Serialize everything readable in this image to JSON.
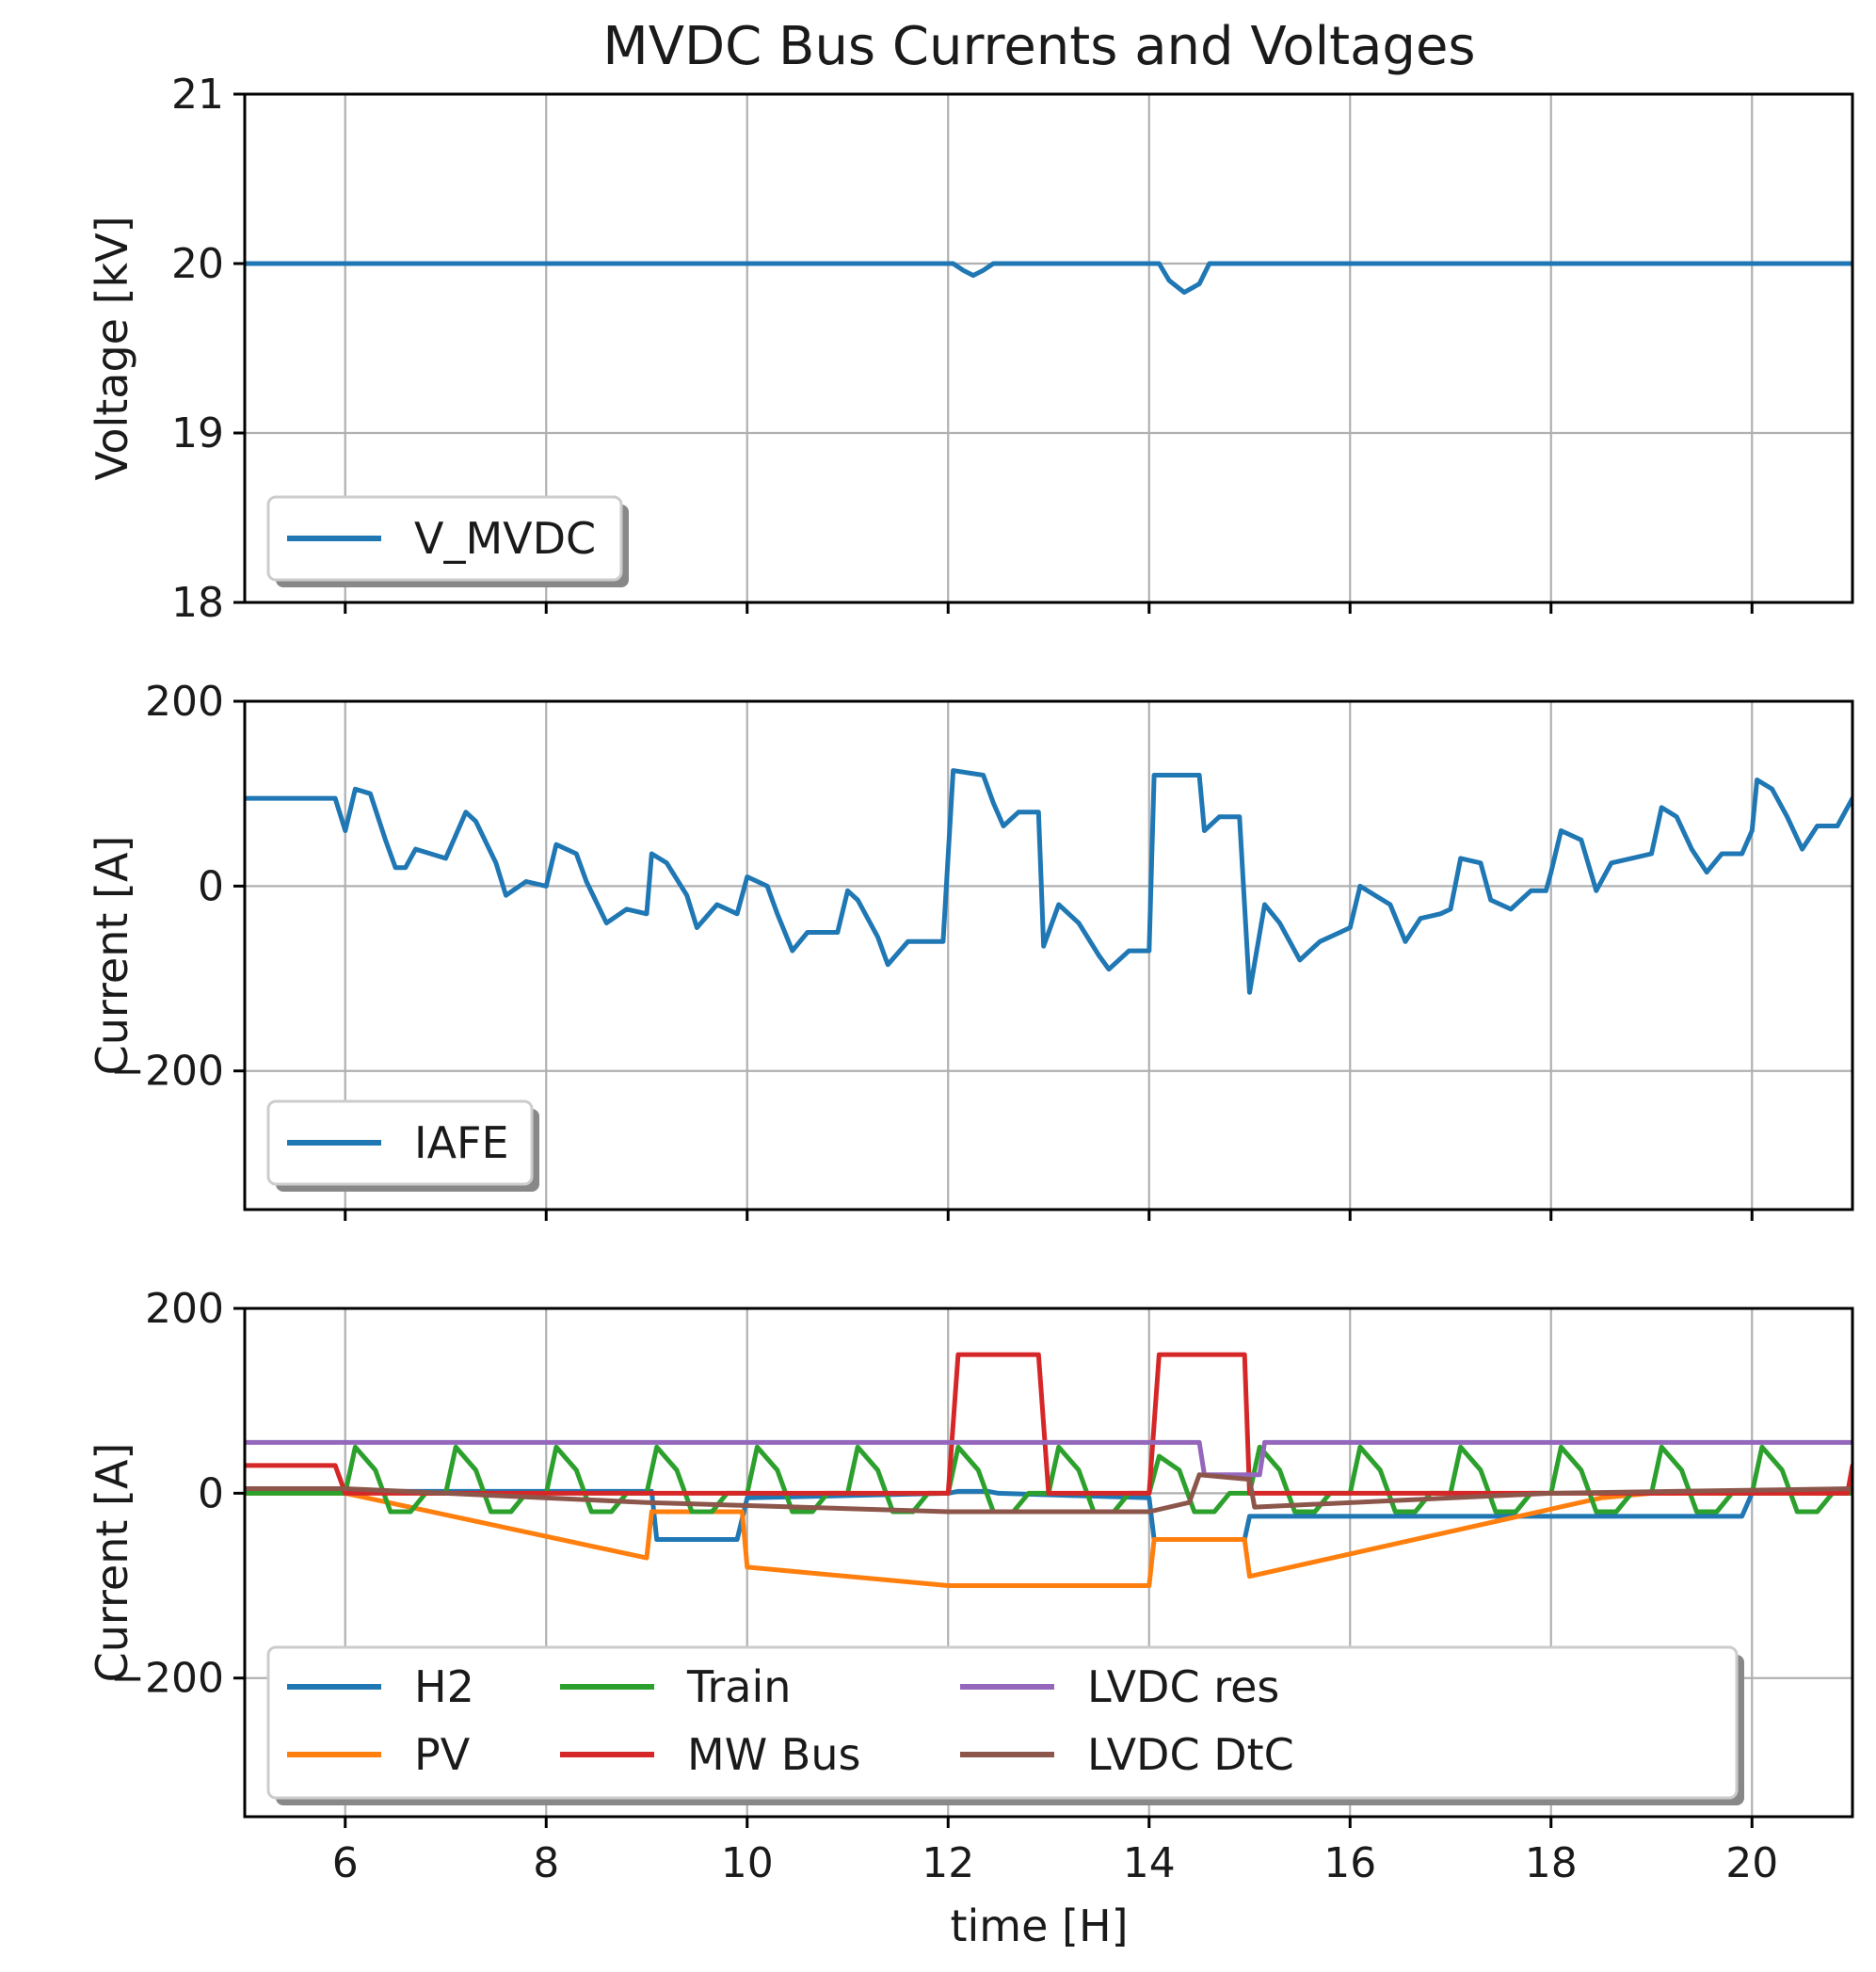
{
  "figure": {
    "title": "MVDC Bus Currents and Voltages",
    "xlabel": "time [H]"
  },
  "chart_data": [
    {
      "type": "line",
      "ylabel": "Voltage [kV]",
      "xlim": [
        5,
        21
      ],
      "ylim": [
        18,
        21
      ],
      "xticks": [
        6,
        8,
        10,
        12,
        14,
        16,
        18,
        20
      ],
      "yticks": [
        18,
        19,
        20,
        21
      ],
      "ytick_labels": [
        "18",
        "19",
        "20",
        "21"
      ],
      "legend_position": "lower-left",
      "legend_columns": 1,
      "series": [
        {
          "name": "V_MVDC",
          "color": "#1f77b4",
          "points": [
            [
              5,
              20
            ],
            [
              12.05,
              20
            ],
            [
              12.15,
              19.96
            ],
            [
              12.25,
              19.93
            ],
            [
              12.35,
              19.96
            ],
            [
              12.45,
              20
            ],
            [
              14.1,
              20
            ],
            [
              14.2,
              19.9
            ],
            [
              14.35,
              19.83
            ],
            [
              14.5,
              19.88
            ],
            [
              14.6,
              20
            ],
            [
              21,
              20
            ]
          ]
        }
      ]
    },
    {
      "type": "line",
      "ylabel": "Current [A]",
      "xlim": [
        5,
        21
      ],
      "ylim": [
        -350,
        200
      ],
      "xticks": [
        6,
        8,
        10,
        12,
        14,
        16,
        18,
        20
      ],
      "yticks": [
        -200,
        0,
        200
      ],
      "ytick_labels": [
        "−200",
        "0",
        "200"
      ],
      "legend_position": "lower-left",
      "legend_columns": 1,
      "series": [
        {
          "name": "IAFE",
          "color": "#1f77b4",
          "points": [
            [
              5,
              95
            ],
            [
              5.9,
              95
            ],
            [
              6,
              60
            ],
            [
              6.1,
              105
            ],
            [
              6.25,
              100
            ],
            [
              6.4,
              50
            ],
            [
              6.5,
              20
            ],
            [
              6.6,
              20
            ],
            [
              6.7,
              40
            ],
            [
              7,
              30
            ],
            [
              7.2,
              80
            ],
            [
              7.3,
              70
            ],
            [
              7.5,
              25
            ],
            [
              7.6,
              -10
            ],
            [
              7.8,
              5
            ],
            [
              8,
              0
            ],
            [
              8.1,
              45
            ],
            [
              8.3,
              35
            ],
            [
              8.4,
              5
            ],
            [
              8.6,
              -40
            ],
            [
              8.8,
              -25
            ],
            [
              9,
              -30
            ],
            [
              9.05,
              35
            ],
            [
              9.2,
              25
            ],
            [
              9.4,
              -10
            ],
            [
              9.5,
              -45
            ],
            [
              9.7,
              -20
            ],
            [
              9.9,
              -30
            ],
            [
              10,
              10
            ],
            [
              10.2,
              0
            ],
            [
              10.3,
              -30
            ],
            [
              10.45,
              -70
            ],
            [
              10.6,
              -50
            ],
            [
              10.9,
              -50
            ],
            [
              11,
              -5
            ],
            [
              11.1,
              -15
            ],
            [
              11.3,
              -55
            ],
            [
              11.4,
              -85
            ],
            [
              11.6,
              -60
            ],
            [
              11.95,
              -60
            ],
            [
              12.05,
              125
            ],
            [
              12.35,
              120
            ],
            [
              12.45,
              90
            ],
            [
              12.55,
              65
            ],
            [
              12.7,
              80
            ],
            [
              12.9,
              80
            ],
            [
              12.95,
              -65
            ],
            [
              13.1,
              -20
            ],
            [
              13.3,
              -40
            ],
            [
              13.5,
              -75
            ],
            [
              13.6,
              -90
            ],
            [
              13.8,
              -70
            ],
            [
              14,
              -70
            ],
            [
              14.05,
              120
            ],
            [
              14.5,
              120
            ],
            [
              14.55,
              60
            ],
            [
              14.7,
              75
            ],
            [
              14.9,
              75
            ],
            [
              15,
              -115
            ],
            [
              15.15,
              -20
            ],
            [
              15.3,
              -40
            ],
            [
              15.5,
              -80
            ],
            [
              15.7,
              -60
            ],
            [
              15.9,
              -50
            ],
            [
              16,
              -45
            ],
            [
              16.1,
              0
            ],
            [
              16.25,
              -10
            ],
            [
              16.4,
              -20
            ],
            [
              16.55,
              -60
            ],
            [
              16.7,
              -35
            ],
            [
              16.9,
              -30
            ],
            [
              17,
              -25
            ],
            [
              17.1,
              30
            ],
            [
              17.3,
              25
            ],
            [
              17.4,
              -15
            ],
            [
              17.6,
              -25
            ],
            [
              17.8,
              -5
            ],
            [
              17.95,
              -5
            ],
            [
              18,
              15
            ],
            [
              18.1,
              60
            ],
            [
              18.3,
              50
            ],
            [
              18.45,
              -5
            ],
            [
              18.6,
              25
            ],
            [
              18.8,
              30
            ],
            [
              19,
              35
            ],
            [
              19.1,
              85
            ],
            [
              19.25,
              75
            ],
            [
              19.4,
              40
            ],
            [
              19.55,
              15
            ],
            [
              19.7,
              35
            ],
            [
              19.9,
              35
            ],
            [
              20,
              60
            ],
            [
              20.05,
              115
            ],
            [
              20.2,
              105
            ],
            [
              20.35,
              75
            ],
            [
              20.5,
              40
            ],
            [
              20.65,
              65
            ],
            [
              20.85,
              65
            ],
            [
              21,
              95
            ]
          ]
        }
      ]
    },
    {
      "type": "line",
      "ylabel": "Current [A]",
      "xlim": [
        5,
        21
      ],
      "ylim": [
        -350,
        200
      ],
      "xticks": [
        6,
        8,
        10,
        12,
        14,
        16,
        18,
        20
      ],
      "yticks": [
        -200,
        0,
        200
      ],
      "ytick_labels": [
        "−200",
        "0",
        "200"
      ],
      "xtick_labels": [
        "6",
        "8",
        "10",
        "12",
        "14",
        "16",
        "18",
        "20"
      ],
      "legend_position": "lower-left",
      "legend_columns": 4,
      "series": [
        {
          "name": "H2",
          "color": "#1f77b4",
          "points": [
            [
              5,
              2
            ],
            [
              9.05,
              2
            ],
            [
              9.1,
              -50
            ],
            [
              9.9,
              -50
            ],
            [
              10,
              -5
            ],
            [
              12,
              0
            ],
            [
              12.1,
              2
            ],
            [
              12.4,
              2
            ],
            [
              12.5,
              0
            ],
            [
              14,
              -5
            ],
            [
              14.05,
              -50
            ],
            [
              14.95,
              -50
            ],
            [
              15,
              -25
            ],
            [
              19.9,
              -25
            ],
            [
              20,
              0
            ],
            [
              21,
              0
            ]
          ]
        },
        {
          "name": "PV",
          "color": "#ff7f0e",
          "points": [
            [
              5,
              0
            ],
            [
              6,
              0
            ],
            [
              9,
              -70
            ],
            [
              9.05,
              -20
            ],
            [
              9.95,
              -20
            ],
            [
              10,
              -80
            ],
            [
              12,
              -100
            ],
            [
              14,
              -100
            ],
            [
              14.05,
              -50
            ],
            [
              14.95,
              -50
            ],
            [
              15,
              -90
            ],
            [
              18.5,
              -5
            ],
            [
              19,
              0
            ],
            [
              21,
              0
            ]
          ]
        },
        {
          "name": "Train",
          "color": "#2ca02c",
          "points": [
            [
              5,
              0
            ],
            [
              6,
              0
            ],
            [
              6.1,
              50
            ],
            [
              6.3,
              25
            ],
            [
              6.45,
              -20
            ],
            [
              6.65,
              -20
            ],
            [
              6.8,
              0
            ],
            [
              7,
              0
            ],
            [
              7.1,
              50
            ],
            [
              7.3,
              25
            ],
            [
              7.45,
              -20
            ],
            [
              7.65,
              -20
            ],
            [
              7.8,
              0
            ],
            [
              8,
              0
            ],
            [
              8.1,
              50
            ],
            [
              8.3,
              25
            ],
            [
              8.45,
              -20
            ],
            [
              8.65,
              -20
            ],
            [
              8.8,
              0
            ],
            [
              9,
              0
            ],
            [
              9.1,
              50
            ],
            [
              9.3,
              25
            ],
            [
              9.45,
              -20
            ],
            [
              9.65,
              -20
            ],
            [
              9.8,
              0
            ],
            [
              10,
              0
            ],
            [
              10.1,
              50
            ],
            [
              10.3,
              25
            ],
            [
              10.45,
              -20
            ],
            [
              10.65,
              -20
            ],
            [
              10.8,
              0
            ],
            [
              11,
              0
            ],
            [
              11.1,
              50
            ],
            [
              11.3,
              25
            ],
            [
              11.45,
              -20
            ],
            [
              11.65,
              -20
            ],
            [
              11.8,
              0
            ],
            [
              12,
              0
            ],
            [
              12.1,
              50
            ],
            [
              12.3,
              25
            ],
            [
              12.45,
              -20
            ],
            [
              12.65,
              -20
            ],
            [
              12.8,
              0
            ],
            [
              13,
              0
            ],
            [
              13.1,
              50
            ],
            [
              13.3,
              25
            ],
            [
              13.45,
              -20
            ],
            [
              13.65,
              -20
            ],
            [
              13.8,
              0
            ],
            [
              14,
              0
            ],
            [
              14.1,
              40
            ],
            [
              14.3,
              25
            ],
            [
              14.45,
              -20
            ],
            [
              14.65,
              -20
            ],
            [
              14.8,
              0
            ],
            [
              15,
              0
            ],
            [
              15.1,
              50
            ],
            [
              15.3,
              25
            ],
            [
              15.45,
              -20
            ],
            [
              15.65,
              -20
            ],
            [
              15.8,
              0
            ],
            [
              16,
              0
            ],
            [
              16.1,
              50
            ],
            [
              16.3,
              25
            ],
            [
              16.45,
              -20
            ],
            [
              16.65,
              -20
            ],
            [
              16.8,
              0
            ],
            [
              17,
              0
            ],
            [
              17.1,
              50
            ],
            [
              17.3,
              25
            ],
            [
              17.45,
              -20
            ],
            [
              17.65,
              -20
            ],
            [
              17.8,
              0
            ],
            [
              18,
              0
            ],
            [
              18.1,
              50
            ],
            [
              18.3,
              25
            ],
            [
              18.45,
              -20
            ],
            [
              18.65,
              -20
            ],
            [
              18.8,
              0
            ],
            [
              19,
              0
            ],
            [
              19.1,
              50
            ],
            [
              19.3,
              25
            ],
            [
              19.45,
              -20
            ],
            [
              19.65,
              -20
            ],
            [
              19.8,
              0
            ],
            [
              20,
              0
            ],
            [
              20.1,
              50
            ],
            [
              20.3,
              25
            ],
            [
              20.45,
              -20
            ],
            [
              20.65,
              -20
            ],
            [
              20.8,
              0
            ],
            [
              21,
              0
            ]
          ]
        },
        {
          "name": "MW Bus",
          "color": "#d62728",
          "points": [
            [
              5,
              30
            ],
            [
              5.9,
              30
            ],
            [
              6,
              0
            ],
            [
              12,
              0
            ],
            [
              12.1,
              150
            ],
            [
              12.9,
              150
            ],
            [
              13,
              0
            ],
            [
              14,
              0
            ],
            [
              14.1,
              150
            ],
            [
              14.95,
              150
            ],
            [
              15,
              0
            ],
            [
              20.95,
              0
            ],
            [
              21,
              30
            ]
          ]
        },
        {
          "name": "LVDC res",
          "color": "#9467bd",
          "points": [
            [
              5,
              55
            ],
            [
              14.5,
              55
            ],
            [
              14.55,
              20
            ],
            [
              15.1,
              20
            ],
            [
              15.15,
              55
            ],
            [
              21,
              55
            ]
          ]
        },
        {
          "name": "LVDC DtC",
          "color": "#8c564b",
          "points": [
            [
              5,
              5
            ],
            [
              6,
              5
            ],
            [
              9,
              -10
            ],
            [
              12,
              -20
            ],
            [
              14,
              -20
            ],
            [
              14.4,
              -10
            ],
            [
              14.5,
              20
            ],
            [
              15,
              15
            ],
            [
              15.05,
              -15
            ],
            [
              18,
              0
            ],
            [
              21,
              5
            ]
          ]
        }
      ]
    }
  ]
}
